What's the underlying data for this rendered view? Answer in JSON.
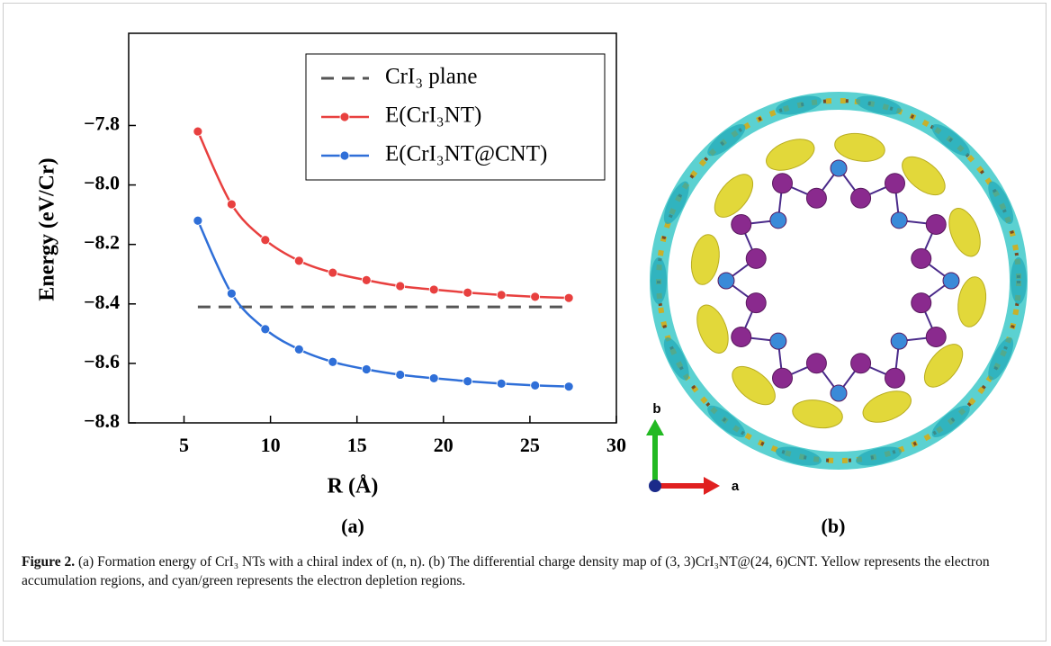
{
  "chart_data": {
    "type": "line",
    "x_label": "R (Å)",
    "y_label": "Energy (eV/Cr)",
    "xlim": [
      1.8,
      30
    ],
    "ylim": [
      -8.8,
      -7.49
    ],
    "xticks": [
      5,
      10,
      15,
      20,
      25,
      30
    ],
    "yticks": [
      {
        "value": -8.8,
        "label": "−8.8"
      },
      {
        "value": -8.6,
        "label": "−8.6"
      },
      {
        "value": -8.4,
        "label": "−8.4"
      },
      {
        "value": -8.2,
        "label": "−8.2"
      },
      {
        "value": -8.0,
        "label": "−8.0"
      },
      {
        "value": -7.8,
        "label": "−7.8"
      }
    ],
    "legend": "upper right",
    "series": [
      {
        "name": "CrI₃ plane",
        "color": "#555555",
        "style": "dashed",
        "x": [
          5.8,
          27.3
        ],
        "values": [
          -8.41,
          -8.41
        ]
      },
      {
        "name": "E(CrI₃NT)",
        "color": "#e8403f",
        "style": "solid",
        "x": [
          5.8,
          7.75,
          9.7,
          11.65,
          13.6,
          15.55,
          17.5,
          19.45,
          21.4,
          23.35,
          25.3,
          27.25
        ],
        "values": [
          -7.82,
          -8.065,
          -8.185,
          -8.255,
          -8.295,
          -8.32,
          -8.34,
          -8.352,
          -8.362,
          -8.37,
          -8.376,
          -8.38
        ]
      },
      {
        "name": "E(CrI₃NT@CNT)",
        "color": "#2f6fd8",
        "style": "solid",
        "x": [
          5.8,
          7.75,
          9.7,
          11.65,
          13.6,
          15.55,
          17.5,
          19.45,
          21.4,
          23.35,
          25.3,
          27.25
        ],
        "values": [
          -8.12,
          -8.365,
          -8.485,
          -8.553,
          -8.595,
          -8.62,
          -8.638,
          -8.65,
          -8.66,
          -8.668,
          -8.674,
          -8.678
        ]
      }
    ]
  },
  "panel_labels": [
    "(a)",
    "(b)"
  ],
  "figure_b": {
    "axis_labels": [
      "b",
      "a"
    ]
  },
  "caption": {
    "label": "Figure 2.",
    "text": "(a) Formation energy of CrI₃ NTs with a chiral index of (n, n). (b) The differential charge density map of (3, 3)CrI₃NT@(24, 6)CNT. Yellow represents the electron accumulation regions, and cyan/green represents the electron depletion regions."
  }
}
